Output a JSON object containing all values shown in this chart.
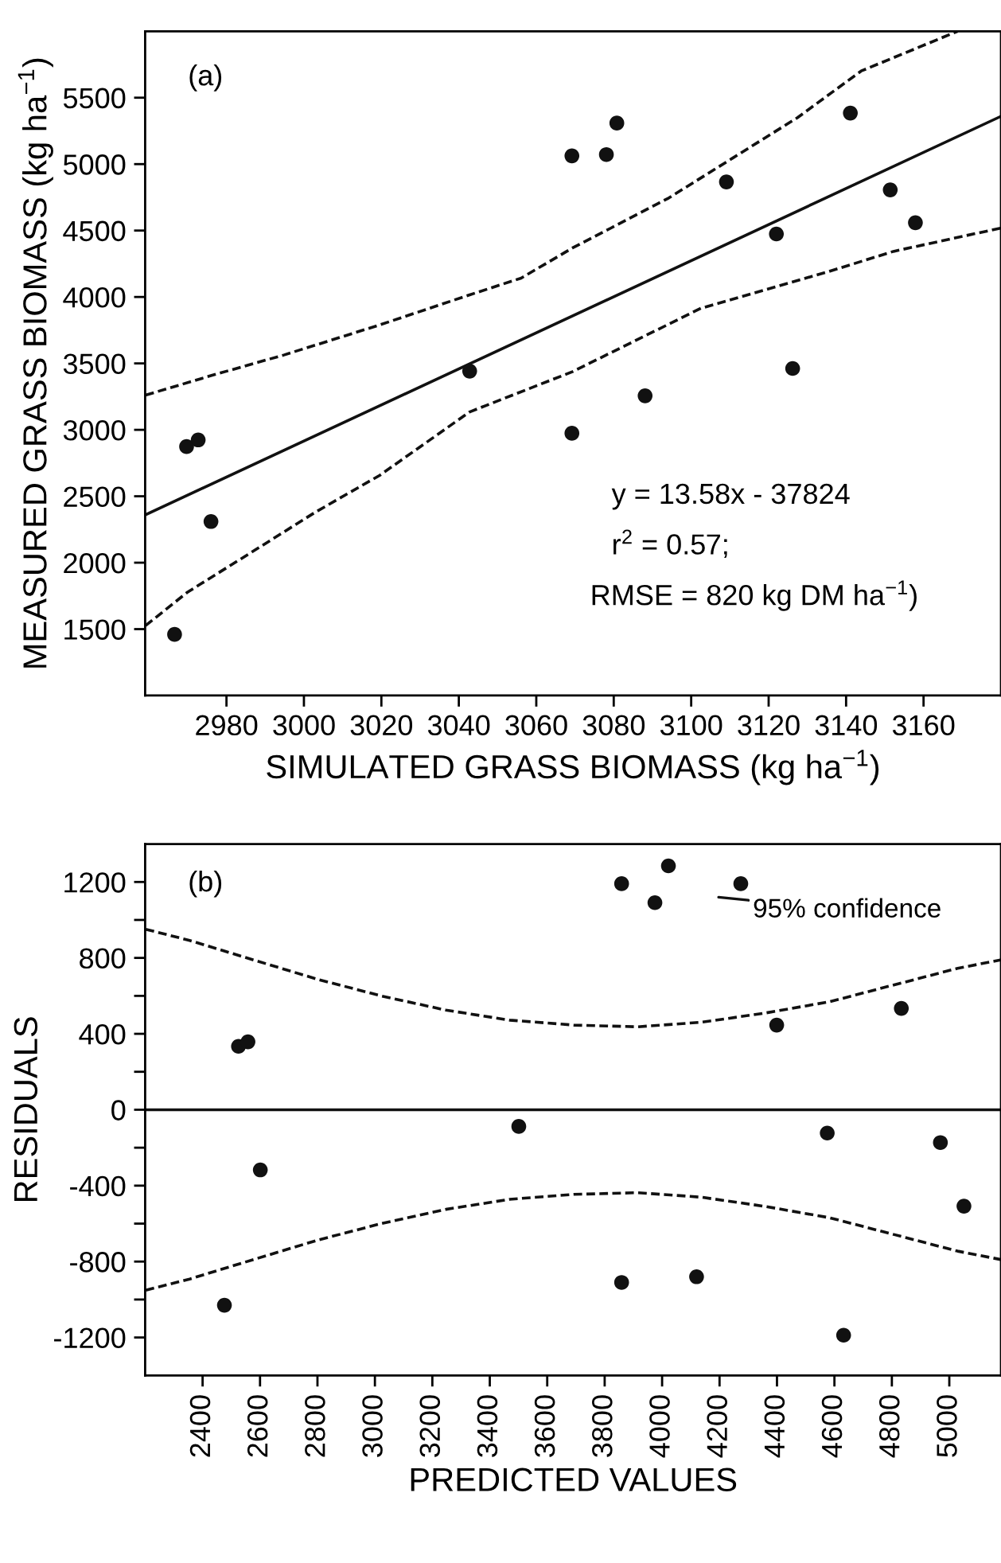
{
  "chart_data": [
    {
      "type": "scatter",
      "xlabel": "SIMULATED GRASS BIOMASS (kg ha$^{−1}$)",
      "ylabel": "MEASURED GRASS BIOMASS (kg ha$^{−1}$)",
      "xlim": [
        2959,
        3180
      ],
      "ylim": [
        1000,
        6000
      ],
      "xticks": [
        2980,
        3000,
        3020,
        3040,
        3060,
        3080,
        3100,
        3120,
        3140,
        3160
      ],
      "yticks": [
        1500,
        2000,
        2500,
        3000,
        3500,
        4000,
        4500,
        5000,
        5500
      ],
      "grid": false,
      "legend": false,
      "annotations": [
        "(a)",
        "y = 13.58x - 37824",
        "r$^{2}$ = 0.57;",
        "RMSE = 820 kg DM ha$^{−1}$)"
      ],
      "series": [
        {
          "color": "#111111",
          "marker": "circle",
          "x": [
            2966.6,
            2969.7,
            2972.7,
            2976,
            3042.8,
            3069.2,
            3069.2,
            3078.1,
            3080.8,
            3088.1,
            3109.1,
            3122,
            3126.2,
            3141.1,
            3151.4,
            3157.9
          ],
          "values": [
            1460,
            2874,
            2924,
            2310,
            3442,
            5062,
            2974,
            5072,
            5309,
            3256,
            4866,
            4474,
            3462,
            5384,
            4806,
            4559
          ]
        },
        {
          "type": "line",
          "color": "#111111",
          "line_style": "solid",
          "x": [
            2959,
            3180
          ],
          "values": [
            2359,
            5360
          ]
        },
        {
          "type": "line",
          "color": "#111111",
          "line_style": "dashed",
          "x": [
            2959.1,
            2976.5,
            2994.8,
            3019.6,
            3042.8,
            3056.1,
            3069.3,
            3079.3,
            3094.2,
            3110.8,
            3127.4,
            3143.9,
            3168.8
          ],
          "values": [
            3261,
            3412,
            3563,
            3790,
            4016,
            4142,
            4368,
            4519,
            4745,
            5047,
            5349,
            5701,
            6000
          ]
        },
        {
          "type": "line",
          "color": "#111111",
          "line_style": "dashed",
          "x": [
            2959.1,
            2969.9,
            2986.5,
            3003,
            3019.6,
            3042.8,
            3069.3,
            3102.5,
            3135.6,
            3152.2,
            3180
          ],
          "values": [
            1526,
            1777,
            2079,
            2381,
            2658,
            3135,
            3437,
            3915,
            4192,
            4343,
            4519
          ]
        }
      ]
    },
    {
      "type": "scatter",
      "xlabel": "PREDICTED VALUES",
      "ylabel": "RESIDUALS",
      "xlim": [
        2200,
        5180
      ],
      "ylim": [
        -1400,
        1400
      ],
      "xticks": [
        2400,
        2600,
        2800,
        3000,
        3200,
        3400,
        3600,
        3800,
        4000,
        4200,
        4400,
        4600,
        4800,
        5000
      ],
      "yticks": [
        {
          "value": -1200,
          "label": "-1200"
        },
        {
          "value": -1000,
          "label": null
        },
        {
          "value": -800,
          "label": "-800"
        },
        {
          "value": -600,
          "label": null
        },
        {
          "value": -400,
          "label": "-400"
        },
        {
          "value": -200,
          "label": null
        },
        0,
        {
          "value": 200,
          "label": null
        },
        400,
        {
          "value": 600,
          "label": null
        },
        800,
        {
          "value": 1000,
          "label": null
        },
        1200
      ],
      "grid": false,
      "legend": false,
      "ref_lines": [
        {
          "axis": "y",
          "value": 0,
          "color": "#111111",
          "line_style": "solid"
        }
      ],
      "annotations": [
        "(b)",
        "95% confidence"
      ],
      "series": [
        {
          "color": "#111111",
          "marker": "circle",
          "x": [
            2476,
            2525,
            2558,
            2601,
            3501,
            3859,
            3859,
            3975,
            4022,
            4120,
            4274,
            4399,
            4575,
            4632,
            4833,
            4969,
            5051
          ],
          "values": [
            -1030,
            334,
            358,
            -317,
            -88,
            1191,
            -910,
            1091,
            1285,
            -880,
            1191,
            446,
            -123,
            -1188,
            534,
            -173,
            -508
          ]
        },
        {
          "type": "line",
          "color": "#111111",
          "line_style": "dashed",
          "x": [
            2202,
            2355,
            2578,
            2801,
            3024,
            3247,
            3469,
            3692,
            3915,
            4138,
            4361,
            4583,
            4806,
            5029,
            5178
          ],
          "values": [
            951,
            892,
            789,
            687,
            599,
            525,
            472,
            446,
            437,
            461,
            510,
            569,
            657,
            745,
            789
          ]
        },
        {
          "type": "line",
          "color": "#111111",
          "line_style": "dashed",
          "x": [
            2202,
            2355,
            2578,
            2801,
            3024,
            3247,
            3469,
            3692,
            3915,
            4138,
            4361,
            4583,
            4806,
            5029,
            5178
          ],
          "values": [
            -951,
            -892,
            -789,
            -687,
            -599,
            -525,
            -472,
            -446,
            -437,
            -461,
            -510,
            -569,
            -657,
            -745,
            -789
          ]
        }
      ]
    }
  ]
}
